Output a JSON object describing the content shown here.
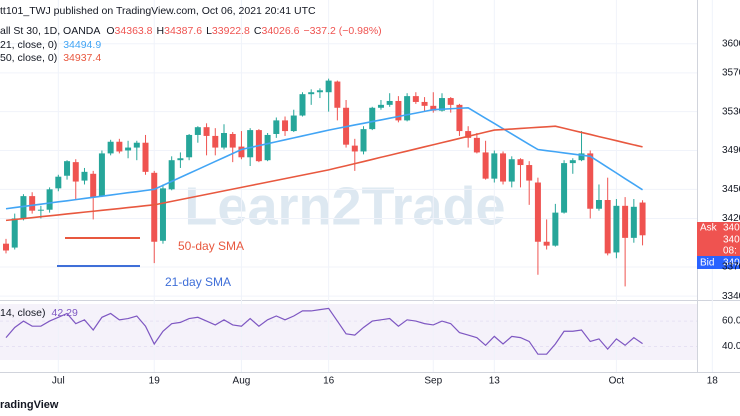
{
  "header": {
    "publisher": "tt101_TWJ published on TradingView.com, Oct 06, 2021 20:41 UTC",
    "symbol": "all St 30, 1D, OANDA",
    "ohlc_prefixes": [
      "O",
      "H",
      "L",
      "C"
    ],
    "change": "−337.2 (−0.98%)"
  },
  "watermark": "Learn2Trade",
  "footer": "radingView",
  "price_tags": {
    "ask": "Ask",
    "ask_price": "340",
    "last_price": "340",
    "countdown": "08:",
    "bid": "Bid",
    "bid_price": "340"
  },
  "chart_data": [
    {
      "type": "candlestick",
      "up_color": "#26a69a",
      "down_color": "#ef5350",
      "ylim": [
        33360,
        36450
      ],
      "yticks": [
        36000,
        35700,
        35300,
        34900,
        34500,
        34200,
        33700,
        33400
      ],
      "xticks": [
        {
          "value": 6,
          "label": "Jul"
        },
        {
          "value": 17,
          "label": "19"
        },
        {
          "value": 27,
          "label": "Aug"
        },
        {
          "value": 37,
          "label": "16"
        },
        {
          "value": 49,
          "label": "Sep"
        },
        {
          "value": 56,
          "label": "13"
        },
        {
          "value": 70,
          "label": "Oct"
        },
        {
          "value": 81,
          "label": "18"
        }
      ],
      "open": [
        33940,
        33900,
        34200,
        34430,
        34290,
        34290,
        34510,
        34640,
        34780,
        34590,
        34660,
        34430,
        34870,
        34990,
        34900,
        34930,
        34980,
        34670,
        33970,
        34500,
        34800,
        34830,
        35060,
        35140,
        35050,
        34930,
        35070,
        34940,
        34830,
        35110,
        34800,
        35070,
        35210,
        35100,
        35260,
        35480,
        35500,
        35500,
        35610,
        35340,
        34950,
        34890,
        35120,
        35340,
        35370,
        35410,
        35210,
        35460,
        35400,
        35360,
        35310,
        35440,
        35370,
        35100,
        35030,
        34880,
        34610,
        34870,
        34580,
        34810,
        34750,
        34570,
        33960,
        33920,
        34260,
        34770,
        34800,
        34870,
        34300,
        34390,
        33850,
        34330,
        34000,
        34363.8
      ],
      "high": [
        33990,
        34250,
        34450,
        34470,
        34330,
        34520,
        34650,
        34800,
        34810,
        34720,
        34690,
        34900,
        35010,
        35020,
        35000,
        35000,
        35060,
        34690,
        34550,
        34840,
        34880,
        35070,
        35150,
        35180,
        35130,
        35170,
        35090,
        35100,
        35130,
        35120,
        35080,
        35240,
        35250,
        35320,
        35500,
        35530,
        35540,
        35640,
        35620,
        35420,
        35020,
        35150,
        35350,
        35420,
        35490,
        35460,
        35490,
        35500,
        35450,
        35500,
        35490,
        35450,
        35380,
        35150,
        35080,
        35000,
        34900,
        34890,
        34840,
        34820,
        34790,
        34620,
        34190,
        34350,
        34800,
        34820,
        35100,
        34900,
        34550,
        34620,
        34400,
        34420,
        34400,
        34387.6
      ],
      "low": [
        33840,
        33880,
        34180,
        34250,
        34200,
        34260,
        34480,
        34600,
        34400,
        34550,
        34190,
        34420,
        34850,
        34870,
        34820,
        34800,
        34650,
        33740,
        33940,
        34490,
        34720,
        34800,
        34980,
        34850,
        34850,
        34910,
        34780,
        34810,
        34740,
        34780,
        34790,
        35030,
        35050,
        35090,
        35250,
        35370,
        35440,
        35300,
        35210,
        34930,
        34690,
        34860,
        35110,
        35320,
        35350,
        35190,
        35200,
        35380,
        35300,
        35290,
        35300,
        35290,
        35050,
        34930,
        34870,
        34600,
        34570,
        34550,
        34520,
        34520,
        34340,
        33620,
        33880,
        33910,
        34250,
        34660,
        34790,
        34200,
        34280,
        33820,
        33790,
        33500,
        33950,
        33922.8
      ],
      "close": [
        33870,
        34200,
        34430,
        34280,
        34290,
        34500,
        34630,
        34790,
        34580,
        34680,
        34420,
        34870,
        34990,
        34890,
        34930,
        34980,
        34680,
        33960,
        34510,
        34800,
        34820,
        35060,
        35140,
        35050,
        34930,
        35080,
        34930,
        34830,
        35110,
        34790,
        35060,
        35210,
        35100,
        35260,
        35480,
        35500,
        35520,
        35620,
        35340,
        34960,
        34890,
        35120,
        35340,
        35370,
        35410,
        35210,
        35460,
        35400,
        35360,
        35310,
        35440,
        35370,
        35100,
        35030,
        34880,
        34610,
        34870,
        34580,
        34810,
        34750,
        34590,
        33960,
        33920,
        34260,
        34770,
        34800,
        34870,
        34300,
        34390,
        33840,
        34330,
        34000,
        34320,
        34026.6
      ],
      "series": [
        {
          "name": "21, close, 0)",
          "color": "#42a5f5",
          "values": [
            34300,
            34312,
            34324,
            34335,
            34347,
            34359,
            34371,
            34382,
            34394,
            34406,
            34418,
            34429,
            34441,
            34453,
            34465,
            34476,
            34488,
            34500,
            34541,
            34582,
            34623,
            34664,
            34705,
            34746,
            34787,
            34828,
            34869,
            34910,
            34930,
            34950,
            34970,
            34990,
            35010,
            35030,
            35050,
            35070,
            35090,
            35110,
            35128,
            35145,
            35163,
            35180,
            35198,
            35215,
            35233,
            35250,
            35268,
            35285,
            35303,
            35320,
            35325,
            35330,
            35335,
            35340,
            35286,
            35232,
            35178,
            35124,
            35070,
            35016,
            34962,
            34910,
            34898,
            34887,
            34875,
            34863,
            34852,
            34840,
            34783,
            34725,
            34668,
            34610,
            34553,
            34494.9
          ]
        },
        {
          "name": "50, close, 0)",
          "color": "#e8583f",
          "values": [
            34180,
            34189,
            34199,
            34208,
            34218,
            34227,
            34236,
            34246,
            34255,
            34265,
            34274,
            34284,
            34293,
            34302,
            34312,
            34321,
            34331,
            34340,
            34358,
            34376,
            34394,
            34412,
            34430,
            34448,
            34466,
            34484,
            34502,
            34520,
            34538,
            34556,
            34574,
            34592,
            34610,
            34628,
            34646,
            34664,
            34682,
            34700,
            34722,
            34743,
            34765,
            34786,
            34808,
            34830,
            34851,
            34873,
            34894,
            34916,
            34938,
            34959,
            34981,
            35002,
            35024,
            35046,
            35067,
            35089,
            35110,
            35116,
            35121,
            35127,
            35133,
            35139,
            35144,
            35150,
            35129,
            35107,
            35086,
            35065,
            35043,
            35022,
            35001,
            34979,
            34958,
            34937.4
          ]
        }
      ],
      "annotations": [
        {
          "text": "50-day SMA",
          "color": "#e8583f"
        },
        {
          "text": "21-day SMA",
          "color": "#3f6fd8"
        }
      ]
    },
    {
      "type": "line",
      "name": "14, close)",
      "color": "#7e57c2",
      "ylim": [
        20,
        75
      ],
      "yticks": [
        {
          "value": 60,
          "label": "60.0"
        },
        {
          "value": 40,
          "label": "40.0"
        }
      ],
      "values": [
        47,
        55,
        60,
        56,
        56,
        60,
        63,
        66,
        58,
        61,
        53,
        63,
        66,
        61,
        62,
        64,
        56,
        42,
        52,
        58,
        59,
        62,
        63,
        60,
        57,
        61,
        57,
        56,
        62,
        56,
        61,
        64,
        61,
        64,
        68,
        68,
        69,
        70,
        60,
        50,
        49,
        55,
        60,
        61,
        62,
        56,
        61,
        60,
        58,
        57,
        60,
        58,
        51,
        49,
        47,
        41,
        48,
        42,
        48,
        47,
        44,
        34,
        34,
        42,
        52,
        52,
        53,
        44,
        46,
        38,
        46,
        41,
        47,
        42.29
      ]
    }
  ]
}
